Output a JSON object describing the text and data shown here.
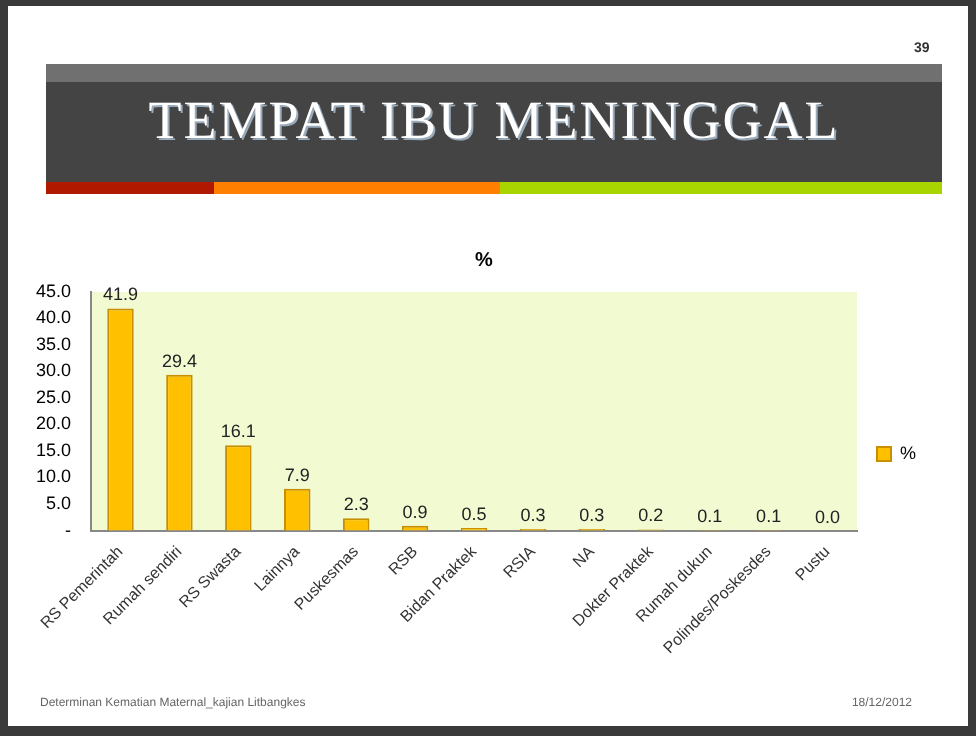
{
  "chart_data": {
    "type": "bar",
    "title": "TEMPAT IBU MENINGGAL",
    "subtitle": "%",
    "categories": [
      "RS Pemerintah",
      "Rumah sendiri",
      "RS Swasta",
      "Lainnya",
      "Puskesmas",
      "RSB",
      "Bidan Praktek",
      "RSIA",
      "NA",
      "Dokter Praktek",
      "Rumah dukun",
      "Polindes/Poskesdes",
      "Pustu"
    ],
    "series": [
      {
        "name": "%",
        "color": "#ffc000",
        "values": [
          41.9,
          29.4,
          16.1,
          7.9,
          2.3,
          0.9,
          0.5,
          0.3,
          0.3,
          0.2,
          0.1,
          0.1,
          0.0
        ],
        "value_labels": [
          "41.9",
          "29.4",
          "16.1",
          "7.9",
          "2.3",
          "0.9",
          "0.5",
          "0.3",
          "0.3",
          "0.2",
          "0.1",
          "0.1",
          "0.0"
        ]
      }
    ],
    "ylim": [
      0,
      45
    ],
    "yticks": [
      {
        "value": 0,
        "label": "-"
      },
      {
        "value": 5,
        "label": "5.0"
      },
      {
        "value": 10,
        "label": "10.0"
      },
      {
        "value": 15,
        "label": "15.0"
      },
      {
        "value": 20,
        "label": "20.0"
      },
      {
        "value": 25,
        "label": "25.0"
      },
      {
        "value": 30,
        "label": "30.0"
      },
      {
        "value": 35,
        "label": "35.0"
      },
      {
        "value": 40,
        "label": "40.0"
      },
      {
        "value": 45,
        "label": "45.0"
      }
    ],
    "grid": false,
    "legend": "right",
    "annotations": [
      "39",
      "Determinan Kematian Maternal_kajian Litbangkes",
      "18/12/2012"
    ]
  }
}
